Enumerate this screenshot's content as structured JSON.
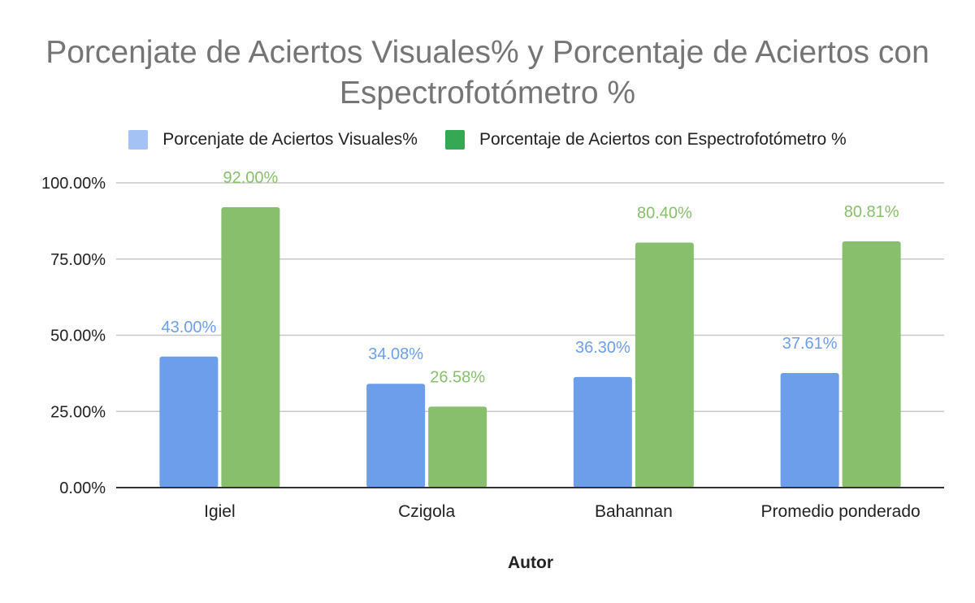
{
  "chart_data": {
    "type": "bar",
    "title": "Porcenjate de Aciertos Visuales% y Porcentaje de Aciertos con Espectrofotómetro %",
    "xlabel": "Autor",
    "ylabel": "",
    "categories": [
      "Igiel",
      "Czigola",
      "Bahannan",
      "Promedio ponderado"
    ],
    "series": [
      {
        "name": "Porcenjate de Aciertos Visuales%",
        "color": "#6d9eeb",
        "legend_color": "#a4c2f4",
        "values": [
          43.0,
          34.08,
          36.3,
          37.61
        ],
        "labels": [
          "43.00%",
          "34.08%",
          "36.30%",
          "37.61%"
        ]
      },
      {
        "name": "Porcentaje de Aciertos con Espectrofotómetro %",
        "color": "#87bf6c",
        "legend_color": "#34a853",
        "values": [
          92.0,
          26.58,
          80.4,
          80.81
        ],
        "labels": [
          "92.00%",
          "26.58%",
          "80.40%",
          "80.81%"
        ]
      }
    ],
    "yticks": [
      0,
      25,
      50,
      75,
      100
    ],
    "ytick_labels": [
      "0.00%",
      "25.00%",
      "50.00%",
      "75.00%",
      "100.00%"
    ],
    "ylim": [
      0,
      100
    ],
    "grid": true,
    "legend_position": "top"
  }
}
